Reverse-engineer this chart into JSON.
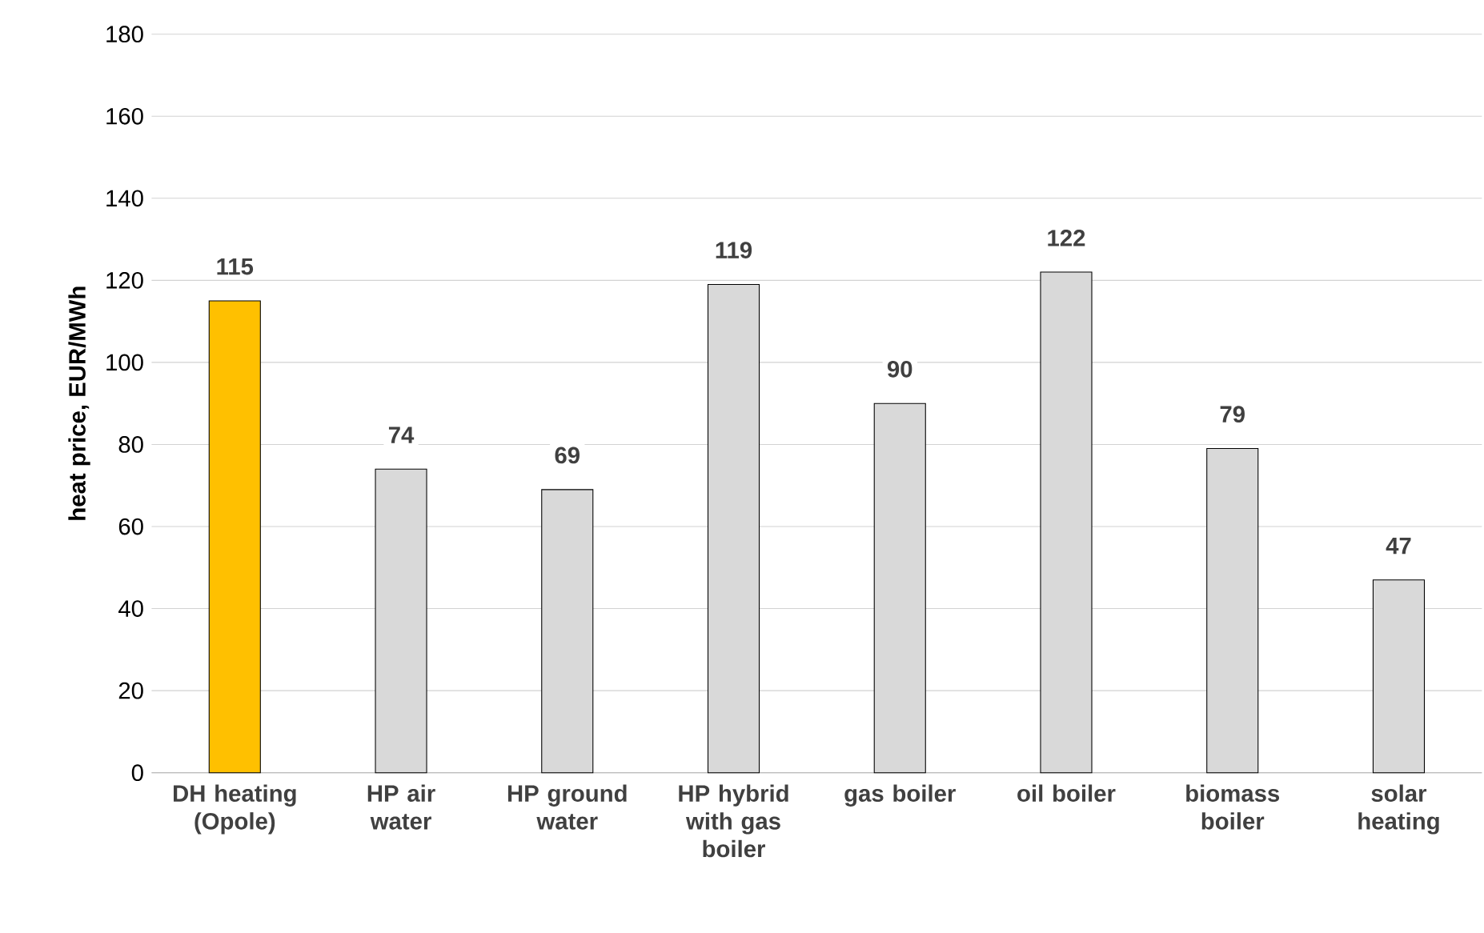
{
  "chart_data": {
    "type": "bar",
    "ylabel": "heat price, EUR/MWh",
    "categories": [
      "DH heating (Opole)",
      "HP air water",
      "HP ground water",
      "HP hybrid with gas boiler",
      "gas boiler",
      "oil boiler",
      "biomass boiler",
      "solar heating"
    ],
    "values": [
      115,
      74,
      69,
      119,
      90,
      122,
      79,
      47
    ],
    "colors": [
      "#ffc000",
      "#d9d9d9",
      "#d9d9d9",
      "#d9d9d9",
      "#d9d9d9",
      "#d9d9d9",
      "#d9d9d9",
      "#d9d9d9"
    ],
    "ylim": [
      0,
      180
    ],
    "yticks": [
      0,
      20,
      40,
      60,
      80,
      100,
      120,
      140,
      160,
      180
    ],
    "grid": "y",
    "data_labels": true
  }
}
